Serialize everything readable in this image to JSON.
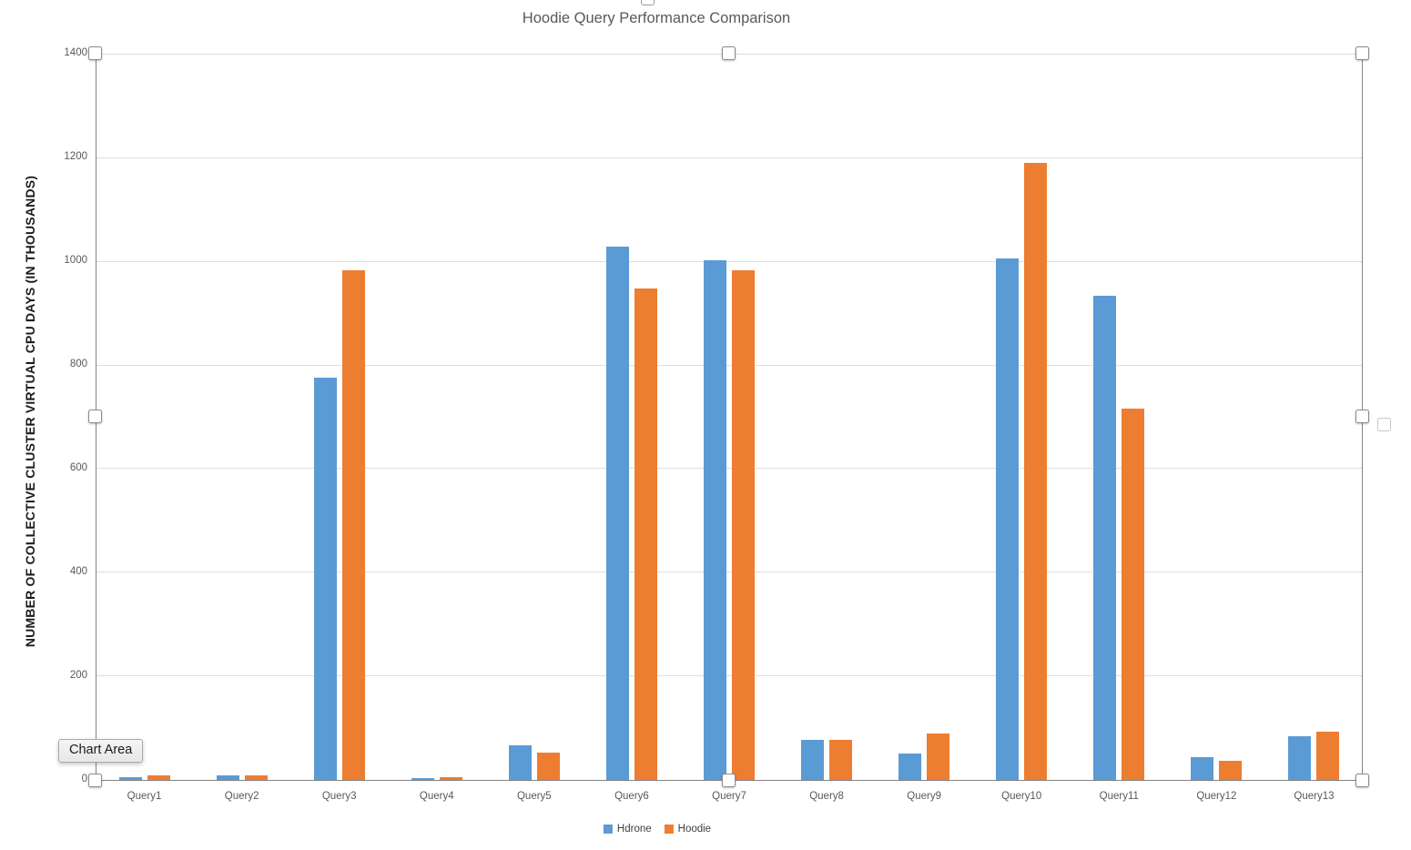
{
  "chart_data": {
    "type": "bar",
    "title": "Hoodie Query Performance Comparison",
    "xlabel": "",
    "ylabel": "NUMBER OF COLLECTIVE CLUSTER VIRTUAL CPU DAYS (IN THOUSANDS)",
    "categories": [
      "Query1",
      "Query2",
      "Query3",
      "Query4",
      "Query5",
      "Query6",
      "Query7",
      "Query8",
      "Query9",
      "Query10",
      "Query11",
      "Query12",
      "Query13"
    ],
    "series": [
      {
        "name": "Hdrone",
        "color": "#5B9BD5",
        "values": [
          5,
          9,
          777,
          4,
          66,
          1030,
          1005,
          77,
          51,
          1008,
          935,
          44,
          84
        ]
      },
      {
        "name": "Hoodie",
        "color": "#ED7D31",
        "values": [
          9,
          9,
          985,
          6,
          53,
          950,
          985,
          77,
          89,
          1193,
          718,
          37,
          93
        ]
      }
    ],
    "ylim": [
      0,
      1400
    ],
    "y_ticks": [
      0,
      200,
      400,
      600,
      800,
      1000,
      1200,
      1400
    ],
    "grid": "horizontal",
    "legend_position": "bottom"
  },
  "tooltip": {
    "label": "Chart Area"
  },
  "colors": {
    "series_blue": "#5B9BD5",
    "series_orange": "#ED7D31",
    "text_gray": "#595959",
    "gridline": "#dedede",
    "selection_border": "#828282"
  }
}
